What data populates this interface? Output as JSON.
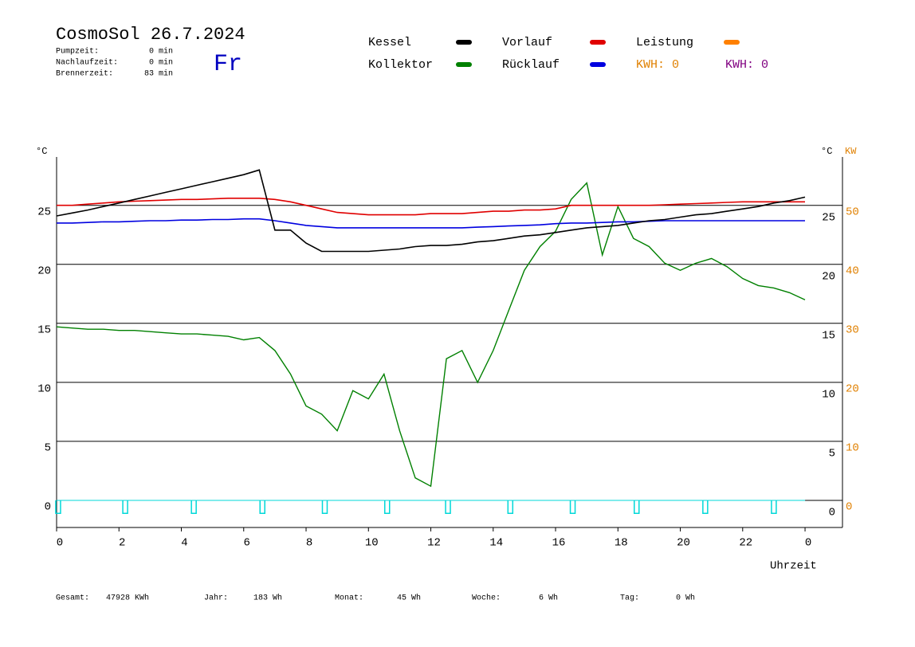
{
  "chart_data": {
    "type": "line",
    "title": "CosmoSol 26.7.2024",
    "weekday": "Fr",
    "info": [
      {
        "label": "Pumpzeit:",
        "value": "0 min"
      },
      {
        "label": "Nachlaufzeit:",
        "value": "0 min"
      },
      {
        "label": "Brennerzeit:",
        "value": "83 min"
      }
    ],
    "energy": [
      {
        "text": "KWH: 0",
        "color": "#e08000"
      },
      {
        "text": "KWH: 0",
        "color": "#800080"
      }
    ],
    "ylabel": "°C",
    "y2label": "KW",
    "xlabel": "Uhrzeit",
    "totals": [
      {
        "label": "Gesamt:",
        "value": "47928 KWh"
      },
      {
        "label": "Jahr:",
        "value": "183 Wh"
      },
      {
        "label": "Monat:",
        "value": "45 Wh"
      },
      {
        "label": "Woche:",
        "value": "6 Wh"
      },
      {
        "label": "Tag:",
        "value": "0 Wh"
      }
    ],
    "xlim": [
      0,
      25.2
    ],
    "xticks": [
      0,
      2,
      4,
      6,
      8,
      10,
      12,
      14,
      16,
      18,
      20,
      22,
      {
        "value": 24,
        "label": "0"
      }
    ],
    "ylim": [
      -2.3,
      29.1
    ],
    "yticks": [
      0,
      5,
      10,
      15,
      20,
      25
    ],
    "y2lim": [
      -4.6,
      58.2
    ],
    "y2ticks": [
      0,
      10,
      20,
      30,
      40,
      50
    ],
    "grid": true,
    "x": [
      0,
      0.5,
      1,
      1.5,
      2,
      2.5,
      3,
      3.5,
      4,
      4.5,
      5,
      5.5,
      6,
      6.5,
      7,
      7.5,
      8,
      8.5,
      9,
      9.5,
      10,
      10.5,
      11,
      11.5,
      12,
      12.5,
      13,
      13.5,
      14,
      14.5,
      15,
      15.5,
      16,
      16.5,
      17,
      17.5,
      18,
      18.5,
      19,
      19.5,
      20,
      20.5,
      21,
      21.5,
      22,
      22.5,
      23,
      23.5,
      24
    ],
    "series": [
      {
        "name": "Kessel",
        "color": "#000000",
        "values": [
          24.1,
          24.35,
          24.6,
          24.9,
          25.2,
          25.5,
          25.8,
          26.1,
          26.4,
          26.7,
          27.0,
          27.3,
          27.6,
          28.0,
          22.9,
          22.9,
          21.8,
          21.1,
          21.1,
          21.1,
          21.1,
          21.2,
          21.3,
          21.5,
          21.6,
          21.6,
          21.7,
          21.9,
          22.0,
          22.2,
          22.4,
          22.5,
          22.7,
          22.9,
          23.1,
          23.2,
          23.3,
          23.5,
          23.7,
          23.8,
          24.0,
          24.2,
          24.3,
          24.5,
          24.7,
          24.9,
          25.2,
          25.4,
          25.7
        ]
      },
      {
        "name": "Kollektor",
        "color": "#008000",
        "values": [
          14.7,
          14.6,
          14.5,
          14.5,
          14.4,
          14.4,
          14.3,
          14.2,
          14.1,
          14.1,
          14.0,
          13.9,
          13.6,
          13.8,
          12.7,
          10.7,
          8.0,
          7.3,
          5.9,
          9.3,
          8.6,
          10.7,
          5.9,
          1.9,
          1.2,
          12.0,
          12.7,
          10.0,
          12.7,
          16.1,
          19.5,
          21.5,
          22.8,
          25.5,
          26.9,
          20.8,
          24.9,
          22.2,
          21.5,
          20.1,
          19.5,
          20.1,
          20.5,
          19.8,
          18.8,
          18.2,
          18.0,
          17.6,
          17.0
        ]
      },
      {
        "name": "Vorlauf",
        "color": "#e00000",
        "values": [
          25.0,
          25.0,
          25.1,
          25.2,
          25.3,
          25.35,
          25.4,
          25.45,
          25.5,
          25.5,
          25.55,
          25.6,
          25.6,
          25.6,
          25.5,
          25.3,
          25.0,
          24.7,
          24.4,
          24.3,
          24.2,
          24.2,
          24.2,
          24.2,
          24.3,
          24.3,
          24.3,
          24.4,
          24.5,
          24.5,
          24.6,
          24.6,
          24.7,
          25.0,
          25.0,
          25.0,
          25.0,
          25.0,
          25.0,
          25.05,
          25.1,
          25.15,
          25.2,
          25.25,
          25.3,
          25.3,
          25.3,
          25.3,
          25.3
        ]
      },
      {
        "name": "Rücklauf",
        "color": "#0000e0",
        "values": [
          23.5,
          23.5,
          23.55,
          23.6,
          23.6,
          23.65,
          23.7,
          23.7,
          23.75,
          23.75,
          23.8,
          23.8,
          23.85,
          23.85,
          23.7,
          23.5,
          23.3,
          23.2,
          23.1,
          23.1,
          23.1,
          23.1,
          23.1,
          23.1,
          23.1,
          23.1,
          23.1,
          23.15,
          23.2,
          23.25,
          23.3,
          23.35,
          23.45,
          23.5,
          23.5,
          23.55,
          23.6,
          23.6,
          23.65,
          23.7,
          23.7,
          23.7,
          23.7,
          23.7,
          23.7,
          23.7,
          23.7,
          23.7,
          23.7
        ]
      },
      {
        "name": "Leistung",
        "color": "#ff8000"
      }
    ],
    "pump": {
      "color": "#00d8d8",
      "x": [
        0.05,
        2.2,
        4.4,
        6.6,
        8.6,
        10.6,
        12.55,
        14.55,
        16.55,
        18.6,
        20.8,
        23.0
      ],
      "values": [
        -1.1,
        -1.1,
        -1.1,
        -1.1,
        -1.1,
        -1.1,
        -1.1,
        -1.1,
        -1.1,
        -1.1,
        -1.1,
        -1.1
      ]
    }
  }
}
